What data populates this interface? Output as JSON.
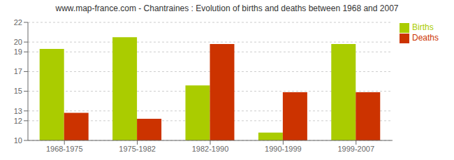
{
  "chart_data": {
    "type": "bar",
    "title": "www.map-france.com - Chantraines : Evolution of births and deaths between 1968 and 2007",
    "categories": [
      "1968-1975",
      "1975-1982",
      "1982-1990",
      "1990-1999",
      "1999-2007"
    ],
    "series": [
      {
        "name": "Births",
        "color": "#aacc00",
        "values": [
          19.3,
          20.5,
          15.6,
          10.8,
          19.8
        ]
      },
      {
        "name": "Deaths",
        "color": "#cc3300",
        "values": [
          12.8,
          12.2,
          19.8,
          14.9,
          14.9
        ]
      }
    ],
    "ylim": [
      10,
      22
    ],
    "yticks": [
      10,
      12,
      13,
      15,
      17,
      19,
      20,
      22
    ],
    "grid": true,
    "legend": "upper right"
  }
}
